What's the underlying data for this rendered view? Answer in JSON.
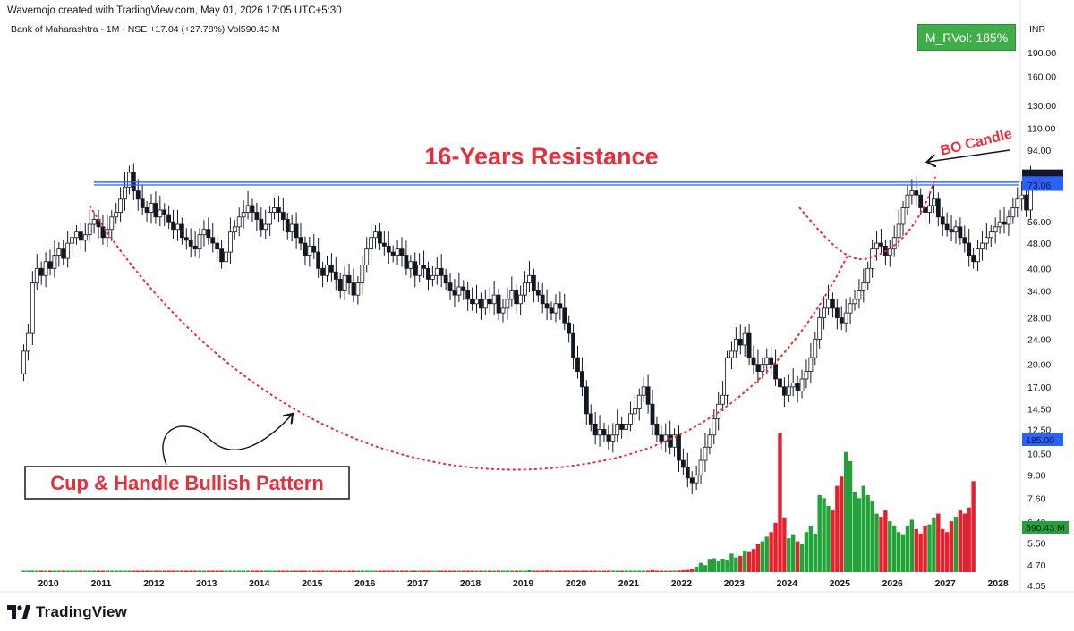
{
  "header": {
    "credit": "Wavemojo created with TradingView.com, May 01, 2026 17:05 UTC+5:30",
    "symbol_line": "Bank of Maharashtra · 1M · NSE  +17.04 (+27.78%)  Vol590.43 M",
    "currency": "INR"
  },
  "indicator_badge": "M_RVol: 185%",
  "brand": {
    "name": "TradingView"
  },
  "colors": {
    "bull_volume": "#22a33a",
    "bear_volume": "#e8202d",
    "resistance_line": "#2962ff",
    "annotation_red": "#e4303d",
    "badge_green": "#3fae49"
  },
  "chart_data": {
    "type": "candlestick",
    "scale": "log",
    "y_ticks": [
      "190.00",
      "160.00",
      "130.00",
      "110.00",
      "94.00",
      "78.37",
      "74.60",
      "73.06",
      "56.00",
      "48.00",
      "40.00",
      "34.00",
      "28.00",
      "24.00",
      "20.00",
      "17.00",
      "14.50",
      "12.50",
      "10.50",
      "185.00",
      "9.00",
      "7.60",
      "6.40",
      "5.50",
      "590.43 M",
      "4.70",
      "4.05"
    ],
    "price_tick_values": [
      190,
      160,
      130,
      110,
      94,
      56,
      48,
      40,
      34,
      28,
      24,
      20,
      17,
      14.5,
      12.5,
      10.5,
      9,
      7.6,
      6.4,
      5.5,
      4.7,
      4.05
    ],
    "price_tick_labels": [
      "190.00",
      "160.00",
      "130.00",
      "110.00",
      "94.00",
      "56.00",
      "48.00",
      "40.00",
      "34.00",
      "28.00",
      "24.00",
      "20.00",
      "17.00",
      "14.50",
      "12.50",
      "10.50",
      "9.00",
      "7.60",
      "6.40",
      "5.50",
      "4.70",
      "4.05"
    ],
    "x_ticks": [
      "2010",
      "2011",
      "2012",
      "2013",
      "2014",
      "2015",
      "2016",
      "2017",
      "2018",
      "2019",
      "2020",
      "2021",
      "2022",
      "2023",
      "2024",
      "2025",
      "2026",
      "2027",
      "2028"
    ],
    "price_labels": [
      {
        "text": "78.37",
        "value": 78.37,
        "style": "dark"
      },
      {
        "text": "74.60",
        "value": 74.6,
        "style": "blue"
      },
      {
        "text": "73.06",
        "value": 73.06,
        "style": "blue"
      }
    ],
    "axis_badges": [
      {
        "text": "185.00",
        "style": "blue"
      },
      {
        "text": "590.43 M",
        "style": "green"
      }
    ],
    "resistance_levels": [
      74.6,
      73.06
    ],
    "annotations": {
      "resistance": "16-Years Resistance",
      "breakout": "BO Candle",
      "pattern": "Cup & Handle Bullish Pattern"
    },
    "monthly_closes_from_2009_07": [
      22,
      25,
      36,
      40,
      38,
      42,
      40,
      44,
      46,
      43,
      48,
      50,
      52,
      49,
      51,
      55,
      57,
      54,
      50,
      53,
      58,
      60,
      66,
      72,
      80,
      70,
      66,
      62,
      60,
      64,
      58,
      61,
      59,
      56,
      53,
      55,
      50,
      49,
      47,
      46,
      51,
      53,
      50,
      48,
      46,
      42,
      45,
      52,
      54,
      58,
      60,
      63,
      60,
      57,
      53,
      55,
      60,
      62,
      60,
      57,
      52,
      55,
      50,
      48,
      44,
      47,
      45,
      40,
      38,
      41,
      39,
      37,
      34,
      38,
      36,
      33,
      36,
      41,
      46,
      50,
      52,
      48,
      47,
      45,
      44,
      46,
      44,
      40,
      42,
      38,
      41,
      40,
      37,
      38,
      40,
      38,
      36,
      34,
      33,
      35,
      34,
      32,
      31,
      32,
      30,
      32,
      31,
      33,
      29,
      30,
      32,
      34,
      31,
      33,
      36,
      38,
      34,
      33,
      31,
      30,
      29,
      31,
      30,
      27,
      25,
      21,
      19,
      17,
      14,
      13,
      12,
      12.5,
      12,
      11.5,
      12,
      13,
      12.5,
      13,
      14,
      14.5,
      16,
      17,
      15,
      13,
      12,
      11.5,
      12,
      11,
      12,
      10,
      9.5,
      8.8,
      8.5,
      9,
      10,
      11,
      12,
      13.5,
      15,
      16,
      21,
      22,
      24,
      23,
      25,
      21,
      20,
      19,
      20,
      21,
      20,
      18,
      17,
      16,
      17,
      17.5,
      16.5,
      18,
      19,
      21,
      24,
      28,
      30,
      32,
      30,
      28,
      27,
      29,
      31,
      32,
      34,
      36,
      40,
      46,
      48,
      47,
      44,
      46,
      50,
      55,
      62,
      68,
      70,
      68,
      62,
      60,
      63,
      66,
      58,
      55,
      53,
      52,
      54,
      50,
      48,
      44,
      42,
      46,
      48,
      50,
      52,
      54,
      56,
      55,
      58,
      62,
      66,
      68,
      61,
      78.37
    ],
    "volume_M_from_2009_07": [
      4,
      5,
      6,
      5,
      4,
      4,
      5,
      6,
      5,
      4,
      4,
      5,
      4,
      5,
      5,
      4,
      5,
      4,
      6,
      5,
      5,
      4,
      4,
      5,
      6,
      5,
      4,
      4,
      4,
      5,
      4,
      4,
      3,
      4,
      3,
      4,
      4,
      3,
      3,
      4,
      3,
      4,
      3,
      3,
      4,
      3,
      3,
      3,
      3,
      3,
      4,
      3,
      3,
      3,
      3,
      3,
      3,
      3,
      3,
      3,
      3,
      3,
      3,
      3,
      3,
      3,
      3,
      3,
      3,
      3,
      3,
      3,
      3,
      3,
      3,
      3,
      3,
      3,
      3,
      3,
      3,
      3,
      3,
      3,
      3,
      3,
      3,
      3,
      3,
      3,
      3,
      3,
      3,
      3,
      3,
      3,
      3,
      3,
      3,
      3,
      3,
      3,
      3,
      3,
      3,
      3,
      3,
      3,
      3,
      4,
      4,
      5,
      6,
      5,
      8,
      12,
      7,
      9,
      8,
      10,
      7,
      6,
      8,
      9,
      6,
      5,
      6,
      7,
      6,
      5,
      6,
      8,
      7,
      6,
      7,
      5,
      6,
      7,
      6,
      5,
      6,
      7,
      6,
      12,
      7,
      5,
      6,
      8,
      9,
      10,
      12,
      14,
      18,
      35,
      60,
      45,
      80,
      90,
      70,
      85,
      75,
      120,
      95,
      105,
      140,
      130,
      150,
      180,
      200,
      230,
      260,
      320,
      900,
      350,
      220,
      240,
      200,
      180,
      260,
      300,
      250,
      500,
      480,
      430,
      400,
      560,
      620,
      780,
      720,
      520,
      480,
      560,
      500,
      460,
      380,
      360,
      400,
      330,
      300,
      260,
      240,
      300,
      340,
      280,
      250,
      300,
      310,
      350,
      380,
      280,
      260,
      330,
      360,
      400,
      380,
      420,
      590.43
    ]
  }
}
